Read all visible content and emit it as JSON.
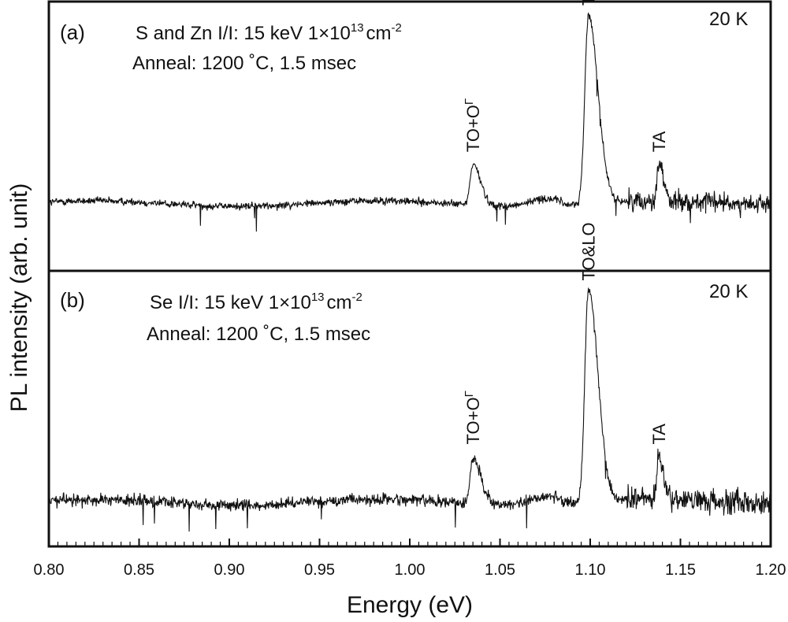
{
  "chart_data": [
    {
      "type": "line",
      "panel_label": "(a)",
      "title_line1_prefix": "S and Zn I/I: 15 keV 1×10",
      "title_line1_exp": "13",
      "title_line1_unit": "cm",
      "title_line1_unit_exp": "-2",
      "title_line2": "Anneal: 1200 ˚C, 1.5 msec",
      "temperature": "20 K",
      "peaks": [
        {
          "label": "TO+OΓ",
          "label_main": "TO+O",
          "label_sup": "Γ",
          "x": 1.035,
          "y": 0.4
        },
        {
          "label": "TO&LO",
          "label_main": "TO&LO",
          "label_sup": "",
          "x": 1.099,
          "y": 0.95
        },
        {
          "label": "TA",
          "label_main": "TA",
          "label_sup": "",
          "x": 1.138,
          "y": 0.4
        }
      ],
      "baseline": 0.25,
      "xlim": [
        0.8,
        1.2
      ],
      "ylim": [
        0,
        1
      ]
    },
    {
      "type": "line",
      "panel_label": "(b)",
      "title_line1_prefix": "Se I/I: 15 keV 1×10",
      "title_line1_exp": "13",
      "title_line1_unit": "cm",
      "title_line1_unit_exp": "-2",
      "title_line2": "Anneal: 1200 ˚C, 1.5 msec",
      "temperature": "20 K",
      "peaks": [
        {
          "label": "TO+OΓ",
          "label_main": "TO+O",
          "label_sup": "Γ",
          "x": 1.035,
          "y": 0.33
        },
        {
          "label": "TO&LO",
          "label_main": "TO&LO",
          "label_sup": "",
          "x": 1.099,
          "y": 0.93
        },
        {
          "label": "TA",
          "label_main": "TA",
          "label_sup": "",
          "x": 1.138,
          "y": 0.33
        }
      ],
      "baseline": 0.16,
      "xlim": [
        0.8,
        1.2
      ],
      "ylim": [
        0,
        1
      ]
    }
  ],
  "axes": {
    "xlabel": "Energy (eV)",
    "ylabel": "PL intensity (arb. unit)",
    "xticks": [
      "0.80",
      "0.85",
      "0.90",
      "0.95",
      "1.00",
      "1.05",
      "1.10",
      "1.15",
      "1.20"
    ],
    "xlim": [
      0.8,
      1.2
    ]
  }
}
